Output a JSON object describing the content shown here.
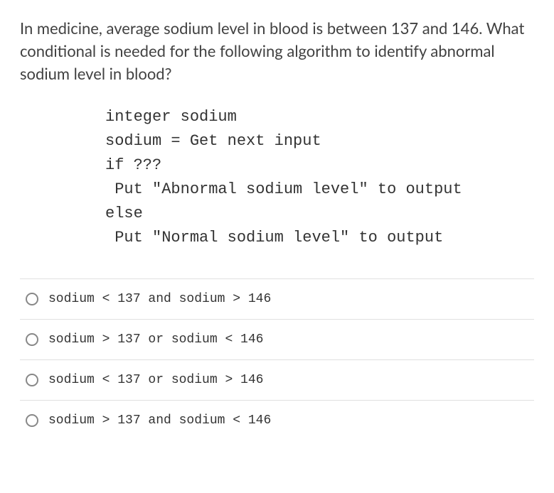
{
  "question": {
    "text": "In medicine, average sodium level in blood is between 137 and 146. What conditional is needed for the following algorithm to identify abnormal sodium level in blood?"
  },
  "code": {
    "line1": "integer sodium",
    "line2": "sodium = Get next input",
    "line3": "if ???",
    "line4": " Put \"Abnormal sodium level\" to output",
    "line5": "else",
    "line6": " Put \"Normal sodium level\" to output"
  },
  "options": [
    {
      "label": "sodium < 137 and sodium > 146"
    },
    {
      "label": "sodium > 137 or sodium < 146"
    },
    {
      "label": "sodium < 137 or sodium > 146"
    },
    {
      "label": "sodium > 137 and sodium < 146"
    }
  ],
  "colors": {
    "text": "#414141",
    "code_text": "#333333",
    "border": "#e0e0e0",
    "radio_border": "#888888",
    "background": "#ffffff"
  },
  "fonts": {
    "body_size": 22,
    "code_size": 22,
    "option_size": 18
  }
}
